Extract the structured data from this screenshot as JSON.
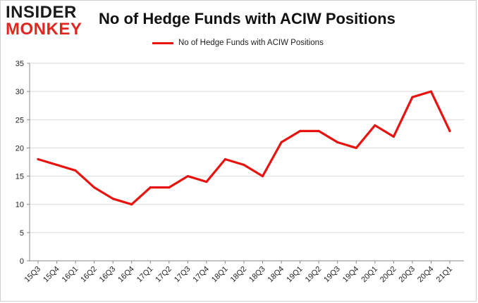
{
  "logo": {
    "line1": "INSIDER",
    "line2": "MONKEY"
  },
  "chart_data": {
    "type": "line",
    "title": "No of Hedge Funds with ACIW Positions",
    "legend": "top-center",
    "grid": true,
    "color": "#e8130f",
    "ylim": [
      0,
      35
    ],
    "yticks": [
      0,
      5,
      10,
      15,
      20,
      25,
      30,
      35
    ],
    "categories": [
      "15Q3",
      "15Q4",
      "16Q1",
      "16Q2",
      "16Q3",
      "16Q4",
      "17Q1",
      "17Q2",
      "17Q3",
      "17Q4",
      "18Q1",
      "18Q2",
      "18Q3",
      "18Q4",
      "19Q1",
      "19Q2",
      "19Q3",
      "19Q4",
      "20Q1",
      "20Q2",
      "20Q3",
      "20Q4",
      "21Q1"
    ],
    "series": [
      {
        "name": "No of Hedge Funds with ACIW Positions",
        "values": [
          18,
          17,
          16,
          13,
          11,
          10,
          13,
          13,
          15,
          14,
          18,
          17,
          15,
          21,
          23,
          23,
          21,
          20,
          24,
          22,
          29,
          30,
          23
        ]
      }
    ]
  }
}
